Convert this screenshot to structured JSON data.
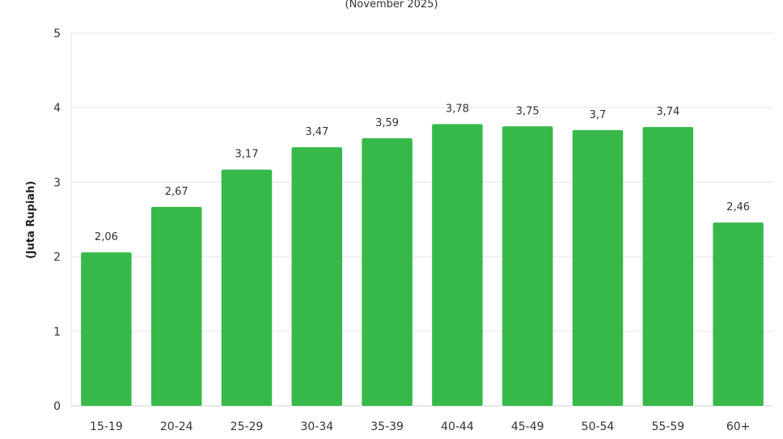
{
  "chart_data": {
    "type": "bar",
    "title": "",
    "subtitle": "(November 2025)",
    "xlabel": "",
    "ylabel": "(Juta Rupiah)",
    "categories": [
      "15-19",
      "20-24",
      "25-29",
      "30-34",
      "35-39",
      "40-44",
      "45-49",
      "50-54",
      "55-59",
      "60+"
    ],
    "values": [
      2.06,
      2.67,
      3.17,
      3.47,
      3.59,
      3.78,
      3.75,
      3.7,
      3.74,
      2.46
    ],
    "data_labels": [
      "2,06",
      "2,67",
      "3,17",
      "3,47",
      "3,59",
      "3,78",
      "3,75",
      "3,7",
      "3,74",
      "2,46"
    ],
    "ylim": [
      0,
      5
    ],
    "yticks": [
      0,
      1,
      2,
      3,
      4,
      5
    ],
    "grid": true,
    "legend": "none",
    "bar_color": "#37b94a"
  }
}
